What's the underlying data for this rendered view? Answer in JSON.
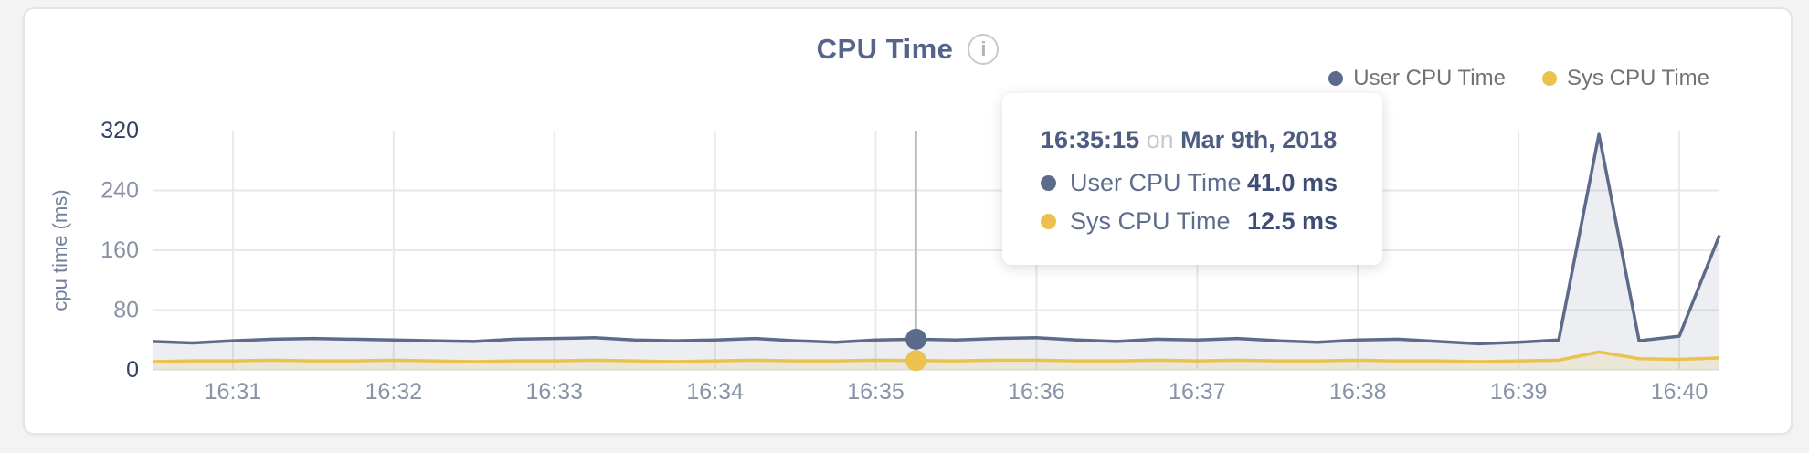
{
  "header": {
    "title": "CPU Time",
    "info_icon_glyph": "i"
  },
  "legend": {
    "items": [
      {
        "label": "User CPU Time",
        "color": "#5d6b8b"
      },
      {
        "label": "Sys CPU Time",
        "color": "#ecc24e"
      }
    ]
  },
  "tooltip": {
    "time": "16:35:15",
    "connector": "on",
    "date": "Mar 9th, 2018",
    "rows": [
      {
        "label": "User CPU Time",
        "value": "41.0 ms",
        "color": "#5d6b8b"
      },
      {
        "label": "Sys CPU Time",
        "value": "12.5 ms",
        "color": "#ecc24e"
      }
    ]
  },
  "chart_data": {
    "type": "area",
    "title": "CPU Time",
    "xlabel": "",
    "ylabel": "cpu time (ms)",
    "ylim": [
      0,
      320
    ],
    "y_ticks": [
      0,
      80,
      160,
      240,
      320
    ],
    "y_ticks_emphasized": [
      0,
      320
    ],
    "x_tick_labels": [
      "16:31",
      "16:32",
      "16:33",
      "16:34",
      "16:35",
      "16:36",
      "16:37",
      "16:38",
      "16:39",
      "16:40"
    ],
    "grid": true,
    "legend_position": "top-right",
    "x": [
      "16:30:30",
      "16:30:45",
      "16:31:00",
      "16:31:15",
      "16:31:30",
      "16:31:45",
      "16:32:00",
      "16:32:15",
      "16:32:30",
      "16:32:45",
      "16:33:00",
      "16:33:15",
      "16:33:30",
      "16:33:45",
      "16:34:00",
      "16:34:15",
      "16:34:30",
      "16:34:45",
      "16:35:00",
      "16:35:15",
      "16:35:30",
      "16:35:45",
      "16:36:00",
      "16:36:15",
      "16:36:30",
      "16:36:45",
      "16:37:00",
      "16:37:15",
      "16:37:30",
      "16:37:45",
      "16:38:00",
      "16:38:15",
      "16:38:30",
      "16:38:45",
      "16:39:00",
      "16:39:15",
      "16:39:30",
      "16:39:45",
      "16:40:00",
      "16:40:15"
    ],
    "series": [
      {
        "name": "User CPU Time",
        "color": "#5d6b8b",
        "fill": "rgba(99,112,144,0.12)",
        "values": [
          38,
          36,
          39,
          41,
          42,
          41,
          40,
          39,
          38,
          41,
          42,
          43,
          40,
          39,
          40,
          42,
          39,
          37,
          40,
          41,
          40,
          42,
          43,
          40,
          38,
          41,
          40,
          42,
          39,
          37,
          40,
          41,
          38,
          35,
          37,
          40,
          315,
          39,
          45,
          180
        ]
      },
      {
        "name": "Sys CPU Time",
        "color": "#ecc24e",
        "fill": "rgba(224,190,82,0.16)",
        "values": [
          11,
          12,
          12,
          13,
          12,
          12,
          13,
          12,
          11,
          12,
          12,
          13,
          12,
          11,
          12,
          13,
          12,
          12,
          13,
          12.5,
          12,
          13,
          13,
          12,
          12,
          13,
          12,
          13,
          12,
          12,
          13,
          12,
          12,
          11,
          12,
          13,
          24,
          15,
          14,
          16
        ]
      }
    ],
    "highlight": {
      "x": "16:35:15",
      "index": 19,
      "values": [
        41.0,
        12.5
      ],
      "crosshair_color": "#b6bac0"
    }
  }
}
